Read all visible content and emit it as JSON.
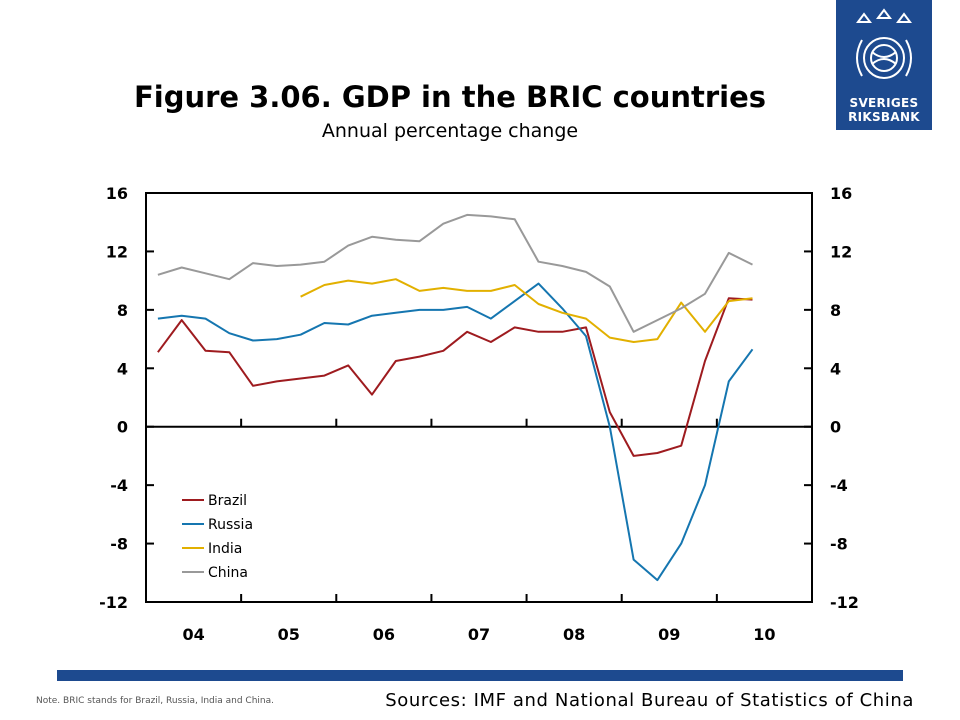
{
  "header": {
    "title": "Figure 3.06. GDP in the BRIC countries",
    "subtitle": "Annual percentage change"
  },
  "logo": {
    "line1": "SVERIGES",
    "line2": "RIKSBANK",
    "color": "#1d4a8f"
  },
  "footer": {
    "note": "Note. BRIC stands for Brazil, Russia, India and China.",
    "sources": "Sources: IMF and National Bureau of Statistics of China",
    "bar_color": "#1d4a8f"
  },
  "chart_data": {
    "type": "line",
    "ylim": [
      -12,
      16
    ],
    "yticks": [
      16,
      12,
      8,
      4,
      0,
      -4,
      -8,
      -12
    ],
    "ytick_labels": [
      "16",
      "12",
      "8",
      "4",
      "0",
      "-4",
      "-8",
      "-12"
    ],
    "xtick_labels": [
      "04",
      "05",
      "06",
      "07",
      "08",
      "09",
      "10"
    ],
    "quarters_per_year": 4,
    "first_quarter": "2004Q1",
    "grid": false,
    "zero_line": true,
    "legend_position": "lower-left",
    "series": [
      {
        "name": "Brazil",
        "color": "#9e1b1f",
        "values": [
          5.1,
          7.3,
          5.2,
          5.1,
          2.8,
          3.1,
          3.3,
          3.5,
          4.2,
          2.2,
          4.5,
          4.8,
          5.2,
          6.5,
          5.8,
          6.8,
          6.5,
          6.5,
          6.8,
          1.0,
          -2.0,
          -1.8,
          -1.3,
          4.5,
          8.8,
          8.7
        ]
      },
      {
        "name": "Russia",
        "color": "#1576b0",
        "values": [
          7.4,
          7.6,
          7.4,
          6.4,
          5.9,
          6.0,
          6.3,
          7.1,
          7.0,
          7.6,
          7.8,
          8.0,
          8.0,
          8.2,
          7.4,
          8.6,
          9.8,
          8.1,
          6.2,
          0.0,
          -9.1,
          -10.5,
          -8.0,
          -4.0,
          3.1,
          5.3
        ]
      },
      {
        "name": "India",
        "color": "#e2b000",
        "values": [
          null,
          null,
          null,
          null,
          null,
          null,
          8.9,
          9.7,
          10.0,
          9.8,
          10.1,
          9.3,
          9.5,
          9.3,
          9.3,
          9.7,
          8.4,
          7.8,
          7.4,
          6.1,
          5.8,
          6.0,
          8.5,
          6.5,
          8.6,
          8.8
        ]
      },
      {
        "name": "China",
        "color": "#999999",
        "values": [
          10.4,
          10.9,
          10.5,
          10.1,
          11.2,
          11.0,
          11.1,
          11.3,
          12.4,
          13.0,
          12.8,
          12.7,
          13.9,
          14.5,
          14.4,
          14.2,
          11.3,
          11.0,
          10.6,
          9.6,
          6.5,
          7.3,
          8.1,
          9.1,
          11.9,
          11.1
        ]
      }
    ]
  }
}
